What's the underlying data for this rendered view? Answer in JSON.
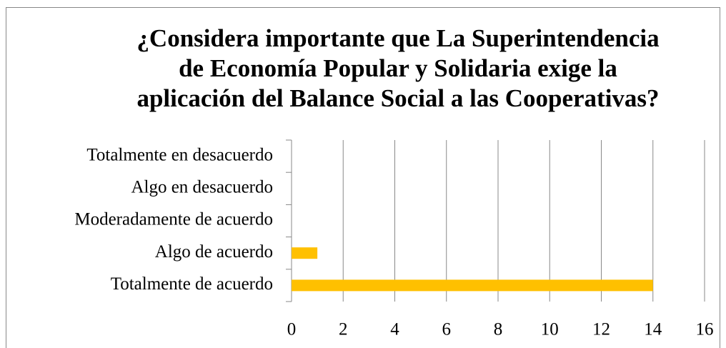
{
  "chart_data": {
    "type": "bar",
    "orientation": "horizontal",
    "title": [
      "¿Considera importante que La Superintendencia",
      "de Economía Popular y Solidaria exige la",
      "aplicación del Balance Social a las Cooperativas?"
    ],
    "categories": [
      "Totalmente en desacuerdo",
      "Algo en desacuerdo",
      "Moderadamente de acuerdo",
      "Algo de acuerdo",
      "Totalmente de acuerdo"
    ],
    "values": [
      0,
      0,
      0,
      1,
      14
    ],
    "color": "#FFC000",
    "xlim": [
      0,
      16
    ],
    "xticks": [
      0,
      2,
      4,
      6,
      8,
      10,
      12,
      14,
      16
    ],
    "grid": true
  }
}
